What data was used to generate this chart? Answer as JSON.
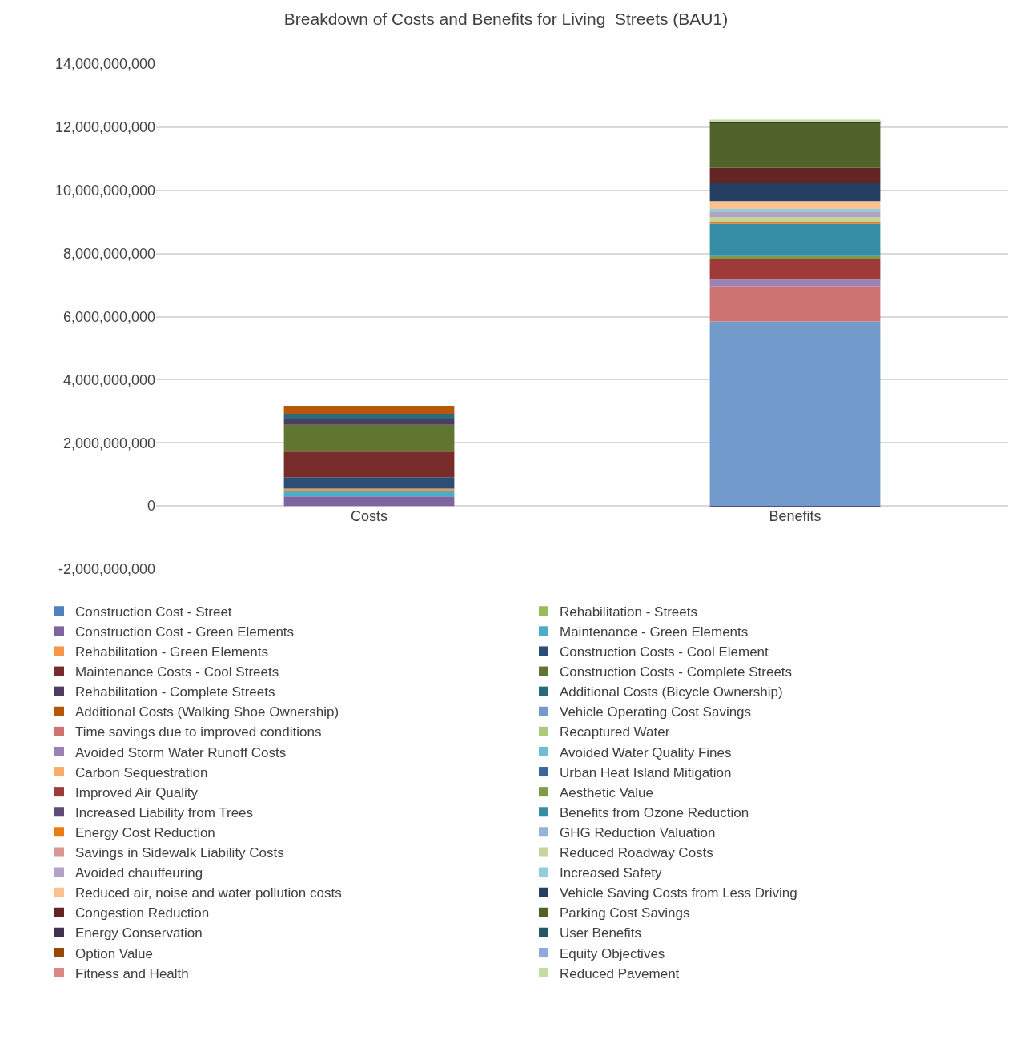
{
  "chart_data": {
    "type": "bar",
    "title": "Breakdown of Costs and Benefits for Living  Streets (BAU1)",
    "categories": [
      "Costs",
      "Benefits"
    ],
    "stacked": true,
    "grid": "y",
    "legend": "bottom",
    "ylim": [
      -2000000000,
      14000000000
    ],
    "yticks": [
      {
        "value": -2000000000,
        "label": "-2,000,000,000"
      },
      {
        "value": 0,
        "label": "0"
      },
      {
        "value": 2000000000,
        "label": "2,000,000,000"
      },
      {
        "value": 4000000000,
        "label": "4,000,000,000"
      },
      {
        "value": 6000000000,
        "label": "6,000,000,000"
      },
      {
        "value": 8000000000,
        "label": "8,000,000,000"
      },
      {
        "value": 10000000000,
        "label": "10,000,000,000"
      },
      {
        "value": 12000000000,
        "label": "12,000,000,000"
      },
      {
        "value": 14000000000,
        "label": "14,000,000,000"
      }
    ],
    "series": [
      {
        "name": "Construction Cost - Street",
        "color": "#4f81bd",
        "values": [
          null,
          null
        ]
      },
      {
        "name": "Rehabilitation - Streets",
        "color": "#9bbb59",
        "values": [
          null,
          null
        ]
      },
      {
        "name": "Construction Cost - Green Elements",
        "color": "#8064a2",
        "values": [
          300000000,
          null
        ]
      },
      {
        "name": "Maintenance - Green Elements",
        "color": "#4bacc6",
        "values": [
          210000000,
          null
        ]
      },
      {
        "name": "Rehabilitation - Green Elements",
        "color": "#f79646",
        "values": [
          40000000,
          null
        ]
      },
      {
        "name": "Construction Costs - Cool Element",
        "color": "#2c4d75",
        "values": [
          360000000,
          null
        ]
      },
      {
        "name": "Maintenance Costs - Cool Streets",
        "color": "#772c2a",
        "values": [
          810000000,
          null
        ]
      },
      {
        "name": "Construction Costs - Complete Streets",
        "color": "#5f7530",
        "values": [
          850000000,
          null
        ]
      },
      {
        "name": "Rehabilitation - Complete Streets",
        "color": "#4d3b62",
        "values": [
          200000000,
          null
        ]
      },
      {
        "name": "Additional Costs (Bicycle Ownership)",
        "color": "#276a7c",
        "values": [
          150000000,
          null
        ]
      },
      {
        "name": "Additional Costs (Walking Shoe Ownership)",
        "color": "#b65708",
        "values": [
          250000000,
          null
        ]
      },
      {
        "name": "Vehicle Operating Cost Savings",
        "color": "#729aca",
        "values": [
          null,
          5850000000
        ]
      },
      {
        "name": "Time savings due to improved conditions",
        "color": "#cd7371",
        "values": [
          null,
          1120000000
        ]
      },
      {
        "name": "Recaptured Water",
        "color": "#afc97a",
        "values": [
          null,
          null
        ]
      },
      {
        "name": "Avoided Storm Water Runoff Costs",
        "color": "#9983b5",
        "values": [
          null,
          200000000
        ]
      },
      {
        "name": "Avoided Water Quality Fines",
        "color": "#6fbdd1",
        "values": [
          null,
          null
        ]
      },
      {
        "name": "Carbon Sequestration",
        "color": "#f9ab6b",
        "values": [
          null,
          null
        ]
      },
      {
        "name": "Urban Heat Island Mitigation",
        "color": "#3a679c",
        "values": [
          null,
          null
        ]
      },
      {
        "name": "Improved Air Quality",
        "color": "#9e3b39",
        "values": [
          null,
          670000000
        ]
      },
      {
        "name": "Aesthetic Value",
        "color": "#7f9a48",
        "values": [
          null,
          80000000
        ]
      },
      {
        "name": "Increased Liability from Trees",
        "color": "#5f4b7a",
        "values": [
          null,
          -50000000
        ]
      },
      {
        "name": "Benefits from Ozone Reduction",
        "color": "#358ea6",
        "values": [
          null,
          1020000000
        ]
      },
      {
        "name": "Energy Cost Reduction",
        "color": "#e97c10",
        "values": [
          null,
          80000000
        ]
      },
      {
        "name": "GHG Reduction Valuation",
        "color": "#95b3d7",
        "values": [
          null,
          null
        ]
      },
      {
        "name": "Savings in Sidewalk Liability Costs",
        "color": "#d99694",
        "values": [
          null,
          null
        ]
      },
      {
        "name": "Reduced Roadway Costs",
        "color": "#c3d69b",
        "values": [
          null,
          140000000
        ]
      },
      {
        "name": "Avoided chauffeuring",
        "color": "#b2a2c7",
        "values": [
          null,
          150000000
        ]
      },
      {
        "name": "Increased Safety",
        "color": "#93cddd",
        "values": [
          null,
          100000000
        ]
      },
      {
        "name": "Reduced air, noise and water pollution costs",
        "color": "#fac090",
        "values": [
          null,
          250000000
        ]
      },
      {
        "name": "Vehicle Saving Costs from Less Driving",
        "color": "#243f60",
        "values": [
          null,
          580000000
        ]
      },
      {
        "name": "Congestion Reduction",
        "color": "#632523",
        "values": [
          null,
          470000000
        ]
      },
      {
        "name": "Parking Cost Savings",
        "color": "#4f6228",
        "values": [
          null,
          1430000000
        ]
      },
      {
        "name": "Energy Conservation",
        "color": "#3f3151",
        "values": [
          null,
          50000000
        ]
      },
      {
        "name": "User Benefits",
        "color": "#215968",
        "values": [
          null,
          null
        ]
      },
      {
        "name": "Option Value",
        "color": "#984807",
        "values": [
          null,
          null
        ]
      },
      {
        "name": "Equity Objectives",
        "color": "#8eaadb",
        "values": [
          null,
          null
        ]
      },
      {
        "name": "Fitness and Health",
        "color": "#da8785",
        "values": [
          null,
          null
        ]
      },
      {
        "name": "Reduced Pavement",
        "color": "#c6dba2",
        "values": [
          null,
          50000000
        ]
      }
    ]
  }
}
